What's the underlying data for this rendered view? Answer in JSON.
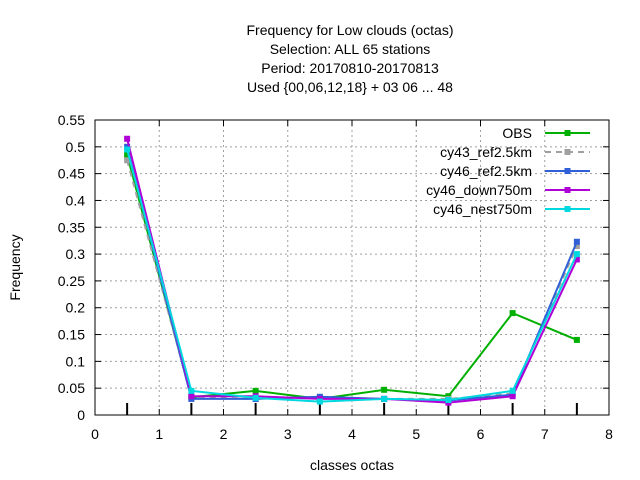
{
  "chart_data": {
    "type": "line",
    "title_lines": [
      "Frequency  for Low clouds (octas)",
      "Selection: ALL      65 stations",
      "Period: 20170810-20170813",
      "Used {00,06,12,18} + 03 06 ... 48"
    ],
    "xlabel": "classes octas",
    "ylabel": "Frequency",
    "xlim": [
      0,
      8
    ],
    "ylim": [
      0,
      0.55
    ],
    "xticks": [
      0,
      1,
      2,
      3,
      4,
      5,
      6,
      7,
      8
    ],
    "yticks": [
      0,
      0.05,
      0.1,
      0.15,
      0.2,
      0.25,
      0.3,
      0.35,
      0.4,
      0.45,
      0.5,
      0.55
    ],
    "xtick_labels": [
      "0",
      "1",
      "2",
      "3",
      "4",
      "5",
      "6",
      "7",
      "8"
    ],
    "ytick_labels": [
      "0",
      "0.05",
      "0.1",
      "0.15",
      "0.2",
      "0.25",
      "0.3",
      "0.35",
      "0.4",
      "0.45",
      "0.5",
      "0.55"
    ],
    "grid": true,
    "legend_position": "top-right",
    "x": [
      0.5,
      1.5,
      2.5,
      3.5,
      4.5,
      5.5,
      6.5,
      7.5
    ],
    "series": [
      {
        "name": "OBS",
        "color": "#00b000",
        "dashed": false,
        "values": [
          0.485,
          0.033,
          0.045,
          0.03,
          0.047,
          0.035,
          0.19,
          0.14
        ]
      },
      {
        "name": "cy43_ref2.5km",
        "color": "#a0a0a0",
        "dashed": true,
        "values": [
          0.475,
          0.033,
          0.03,
          0.033,
          0.03,
          0.03,
          0.04,
          0.315
        ]
      },
      {
        "name": "cy46_ref2.5km",
        "color": "#3060d8",
        "dashed": false,
        "values": [
          0.5,
          0.03,
          0.03,
          0.034,
          0.03,
          0.027,
          0.038,
          0.323
        ]
      },
      {
        "name": "cy46_down750m",
        "color": "#b000d8",
        "dashed": false,
        "values": [
          0.515,
          0.035,
          0.035,
          0.03,
          0.03,
          0.023,
          0.035,
          0.29
        ]
      },
      {
        "name": "cy46_nest750m",
        "color": "#00d8e0",
        "dashed": false,
        "values": [
          0.495,
          0.045,
          0.032,
          0.025,
          0.03,
          0.028,
          0.045,
          0.3
        ]
      }
    ]
  }
}
